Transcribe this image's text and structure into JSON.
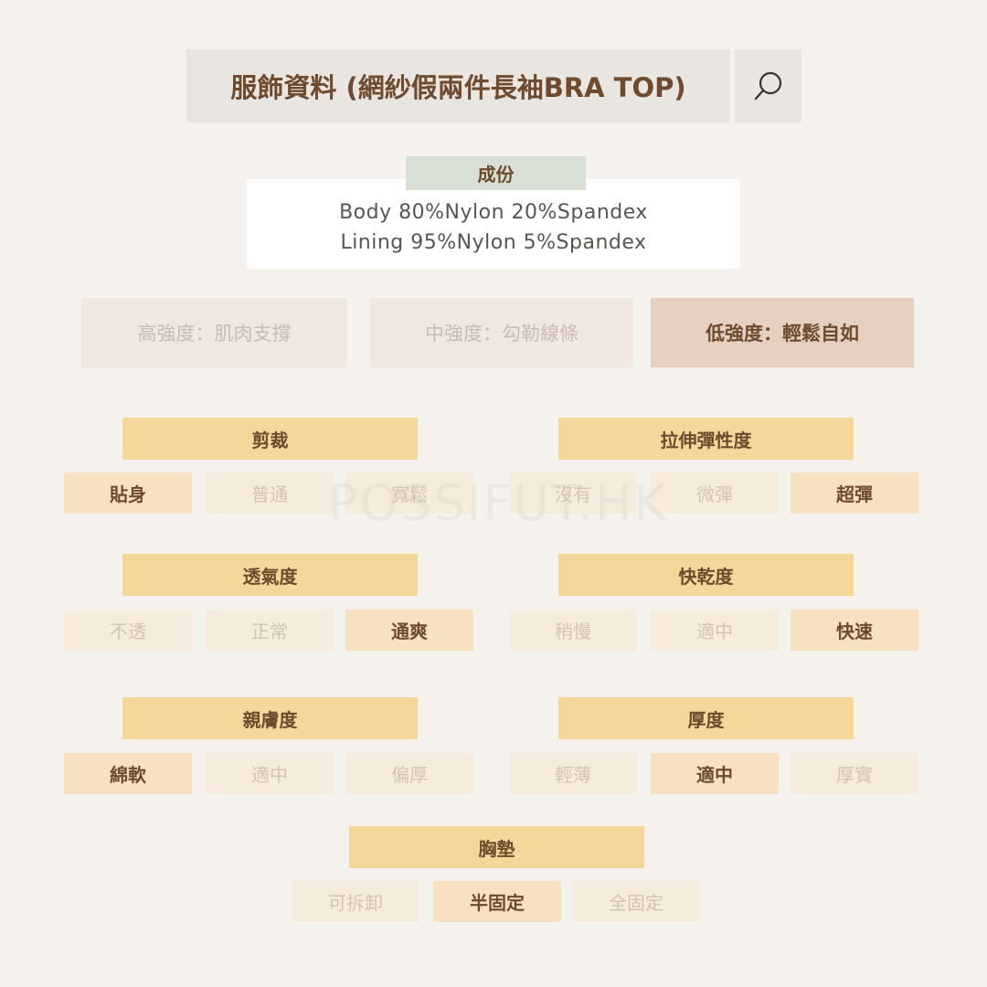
{
  "header": {
    "title": "服飾資料 (網紗假兩件長袖BRA TOP)",
    "search_icon": "search-icon"
  },
  "composition": {
    "label": "成份",
    "lines": [
      "Body 80%Nylon 20%Spandex",
      "Lining 95%Nylon 5%Spandex"
    ]
  },
  "intensity": {
    "options": [
      "高強度：肌肉支撐",
      "中強度：勾勒線條",
      "低強度：輕鬆自如"
    ],
    "selected": 2
  },
  "groups": [
    {
      "title": "剪裁",
      "options": [
        "貼身",
        "普通",
        "寬鬆"
      ],
      "selected": 0
    },
    {
      "title": "拉伸彈性度",
      "options": [
        "沒有",
        "微彈",
        "超彈"
      ],
      "selected": 2
    },
    {
      "title": "透氣度",
      "options": [
        "不透",
        "正常",
        "通爽"
      ],
      "selected": 2
    },
    {
      "title": "快乾度",
      "options": [
        "稍慢",
        "適中",
        "快速"
      ],
      "selected": 2
    },
    {
      "title": "親膚度",
      "options": [
        "綿軟",
        "適中",
        "偏厚"
      ],
      "selected": 0
    },
    {
      "title": "厚度",
      "options": [
        "輕薄",
        "適中",
        "厚實"
      ],
      "selected": 1
    },
    {
      "title": "胸墊",
      "options": [
        "可拆卸",
        "半固定",
        "全固定"
      ],
      "selected": 1
    }
  ],
  "watermark": "POSSIFUT.HK",
  "colors": {
    "text": "#6e4a2e",
    "header_bg": "#f6d79a",
    "selected_bg": "#f8e1c0",
    "composition_label_bg": "#d8e0d5"
  }
}
